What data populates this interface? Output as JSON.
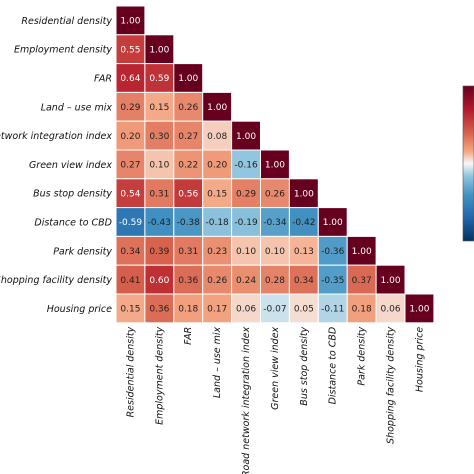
{
  "chart_data": {
    "type": "heatmap",
    "title": "",
    "variables": [
      "Residential density",
      "Employment density",
      "FAR",
      "Land – use mix",
      "Road network integration index",
      "Green view index",
      "Bus stop density",
      "Distance to CBD",
      "Park density",
      "Shopping facility density",
      "Housing price"
    ],
    "row_labels": [
      "Residential density",
      "Employment density",
      "FAR",
      "Land – use mix",
      "network integration index",
      "Green view index",
      "Bus stop density",
      "Distance to CBD",
      "Park density",
      "Shopping facility density",
      "Housing price"
    ],
    "values": [
      [
        1.0
      ],
      [
        0.55,
        1.0
      ],
      [
        0.64,
        0.59,
        1.0
      ],
      [
        0.29,
        0.15,
        0.26,
        1.0
      ],
      [
        0.2,
        0.3,
        0.27,
        0.08,
        1.0
      ],
      [
        0.27,
        0.1,
        0.22,
        0.2,
        -0.16,
        1.0
      ],
      [
        0.54,
        0.31,
        0.56,
        0.15,
        0.29,
        0.26,
        1.0
      ],
      [
        -0.59,
        -0.43,
        -0.38,
        -0.18,
        -0.19,
        -0.34,
        -0.42,
        1.0
      ],
      [
        0.34,
        0.39,
        0.31,
        0.23,
        0.1,
        0.1,
        0.13,
        -0.36,
        1.0
      ],
      [
        0.41,
        0.6,
        0.36,
        0.26,
        0.24,
        0.28,
        0.34,
        -0.35,
        0.37,
        1.0
      ],
      [
        0.15,
        0.36,
        0.18,
        0.17,
        0.06,
        -0.07,
        0.05,
        -0.11,
        0.18,
        0.06,
        1.0
      ]
    ],
    "value_format": "2 decimals",
    "color_range": [
      -1,
      1
    ],
    "colormap": "RdBu_r",
    "colors": {
      "positive": "#67001f",
      "neutral": "#f7f7f7",
      "negative": "#053061"
    },
    "colorbar": {
      "placement": "right",
      "ticks_visible": false
    },
    "mask": "upper triangle"
  }
}
